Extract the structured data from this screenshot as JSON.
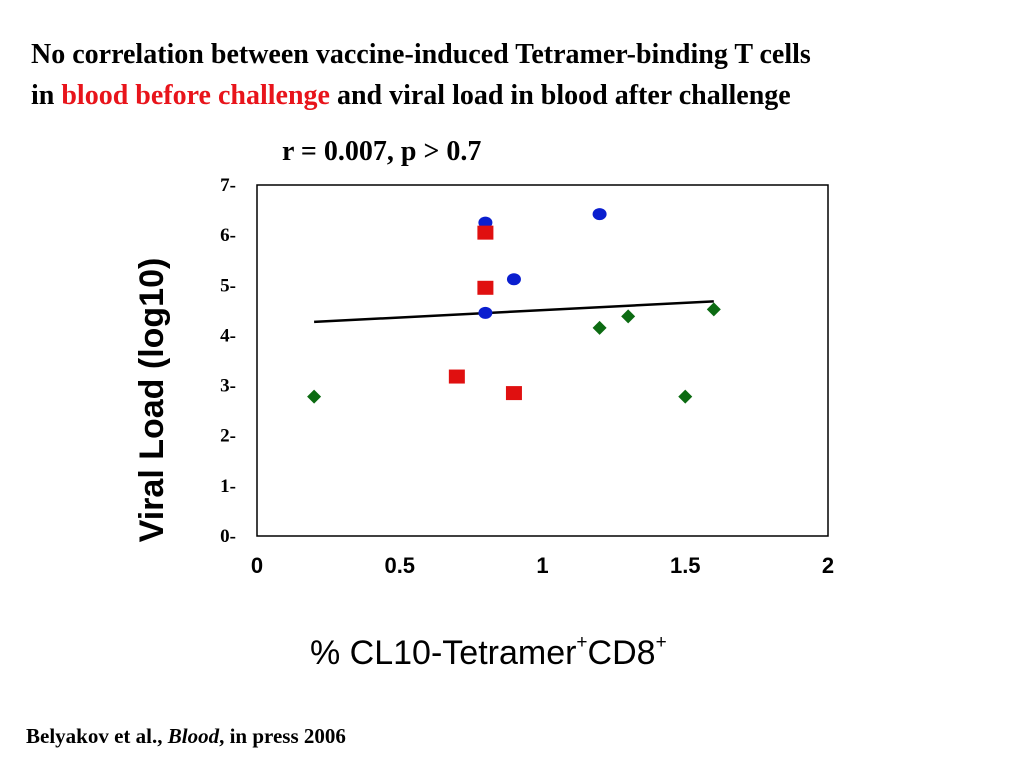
{
  "title": {
    "line1": "No correlation between vaccine-induced Tetramer-binding T cells",
    "line2_prefix": "in ",
    "line2_highlight": "blood before challenge",
    "line2_suffix": " and viral load in blood after challenge"
  },
  "citation": {
    "authors": "Belyakov et al., ",
    "journal": "Blood",
    "rest": ", in press 2006"
  },
  "colors": {
    "highlight": "#e8141b",
    "circle": "#0a1ecf",
    "square": "#e01010",
    "diamond": "#0c6b12"
  },
  "chart_data": {
    "type": "scatter",
    "annotation": "r = 0.007, p > 0.7",
    "xlabel_main": "% CL10-Tetramer",
    "xlabel_sup1": "+",
    "xlabel_mid": "CD8",
    "xlabel_sup2": "+",
    "ylabel": "Viral Load (log10)",
    "xlim": [
      0,
      2
    ],
    "ylim": [
      0,
      7
    ],
    "x_ticks": [
      {
        "value": 0,
        "label": "0"
      },
      {
        "value": 0.5,
        "label": "0.5"
      },
      {
        "value": 1,
        "label": "1"
      },
      {
        "value": 1.5,
        "label": "1.5"
      },
      {
        "value": 2,
        "label": "2"
      }
    ],
    "y_ticks": [
      {
        "value": 0,
        "label": "0-"
      },
      {
        "value": 1,
        "label": "1-"
      },
      {
        "value": 2,
        "label": "2-"
      },
      {
        "value": 3,
        "label": "3-"
      },
      {
        "value": 4,
        "label": "4-"
      },
      {
        "value": 5,
        "label": "5-"
      },
      {
        "value": 6,
        "label": "6-"
      },
      {
        "value": 7,
        "label": "7-"
      }
    ],
    "grid": false,
    "series": [
      {
        "marker": "circle",
        "color": "#0a1ecf",
        "points": [
          [
            0.8,
            6.25
          ],
          [
            1.2,
            6.42
          ],
          [
            0.9,
            5.12
          ],
          [
            0.8,
            4.45
          ]
        ]
      },
      {
        "marker": "square",
        "color": "#e01010",
        "points": [
          [
            0.8,
            6.05
          ],
          [
            0.8,
            4.95
          ],
          [
            0.7,
            3.18
          ],
          [
            0.9,
            2.85
          ]
        ]
      },
      {
        "marker": "diamond",
        "color": "#0c6b12",
        "points": [
          [
            0.2,
            2.78
          ],
          [
            1.2,
            4.15
          ],
          [
            1.3,
            4.38
          ],
          [
            1.6,
            4.52
          ],
          [
            1.5,
            2.78
          ]
        ]
      }
    ],
    "trendline": {
      "x": [
        0.2,
        1.6
      ],
      "y": [
        4.27,
        4.68
      ]
    }
  }
}
